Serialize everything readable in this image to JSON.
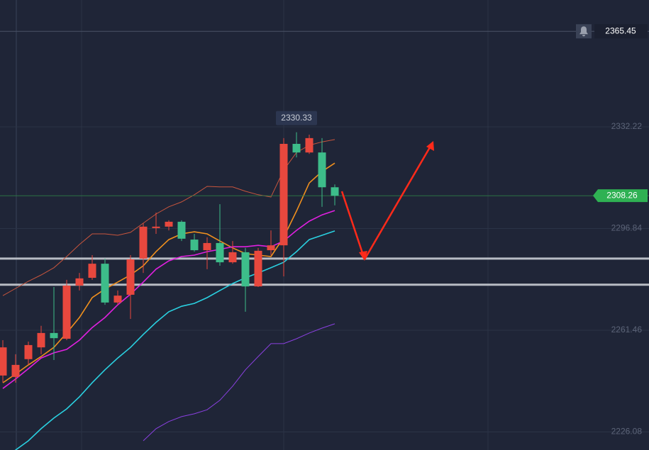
{
  "chart_data": {
    "type": "candlestick",
    "open": [
      2245.7,
      2245.2,
      2251.4,
      2255.5,
      2260.5,
      2258.5,
      2277.0,
      2279.7,
      2284.6,
      2271.1,
      2273.8,
      2286.4,
      2297.0,
      2297.5,
      2299.2,
      2293.0,
      2289.3,
      2291.8,
      2285.1,
      2288.6,
      2276.7,
      2289.3,
      2291.0,
      2326.3,
      2323.3,
      2323.3,
      2311.2
    ],
    "high": [
      2258.0,
      2253.1,
      2257.5,
      2263.0,
      2276.5,
      2279.0,
      2281.4,
      2287.6,
      2286.4,
      2275.3,
      2287.6,
      2298.7,
      2302.4,
      2299.7,
      2299.7,
      2295.0,
      2293.8,
      2305.3,
      2292.5,
      2290.1,
      2290.1,
      2296.2,
      2328.3,
      2330.33,
      2329.5,
      2328.3,
      2312.2
    ],
    "low": [
      2243.2,
      2243.2,
      2249.4,
      2253.1,
      2251.1,
      2258.0,
      2275.3,
      2279.0,
      2270.3,
      2270.3,
      2265.4,
      2281.4,
      2295.0,
      2296.2,
      2292.5,
      2288.8,
      2282.7,
      2283.9,
      2284.6,
      2267.9,
      2276.5,
      2287.6,
      2280.2,
      2321.6,
      2322.8,
      2304.4,
      2304.9
    ],
    "close": [
      2255.5,
      2249.4,
      2256.3,
      2260.5,
      2258.7,
      2277.0,
      2279.5,
      2284.6,
      2271.1,
      2273.5,
      2286.1,
      2297.5,
      2297.5,
      2299.2,
      2293.3,
      2289.3,
      2291.8,
      2285.1,
      2288.6,
      2276.7,
      2289.1,
      2291.0,
      2326.3,
      2323.3,
      2328.3,
      2311.2,
      2308.26
    ],
    "up_color": "#e8483e",
    "down_color": "#3dbd8a",
    "series": [
      {
        "color": "#c8553d",
        "values": [
          2273.5,
          2276.0,
          2278.5,
          2280.7,
          2283.2,
          2287.1,
          2291.3,
          2295.0,
          2295.0,
          2294.5,
          2295.5,
          2298.7,
          2301.9,
          2304.4,
          2306.1,
          2308.6,
          2311.5,
          2311.3,
          2311.3,
          2309.8,
          2308.6,
          2307.8,
          2317.2,
          2323.3,
          2325.8,
          2327.0,
          2327.8
        ]
      },
      {
        "color": "#f0901e",
        "values": [
          2243.2,
          2246.2,
          2249.4,
          2252.3,
          2255.5,
          2260.5,
          2265.9,
          2272.8,
          2275.8,
          2278.2,
          2280.7,
          2283.9,
          2288.8,
          2293.0,
          2295.0,
          2295.7,
          2295.0,
          2292.5,
          2290.1,
          2288.1,
          2287.6,
          2287.1,
          2293.8,
          2302.9,
          2312.7,
          2316.7,
          2319.6
        ]
      },
      {
        "color": "#e020e0",
        "values": [
          2241.2,
          2244.5,
          2248.1,
          2251.8,
          2253.6,
          2254.8,
          2258.0,
          2262.4,
          2265.9,
          2270.3,
          2274.0,
          2278.2,
          2282.7,
          2285.6,
          2287.1,
          2287.6,
          2288.8,
          2289.6,
          2290.5,
          2290.5,
          2291.0,
          2290.5,
          2292.5,
          2296.2,
          2299.4,
          2301.6,
          2303.1
        ]
      },
      {
        "color": "#2ad0e0",
        "values": [
          2216.1,
          2219.8,
          2223.0,
          2227.2,
          2230.9,
          2234.1,
          2238.3,
          2243.2,
          2247.7,
          2251.8,
          2255.5,
          2260.0,
          2264.2,
          2267.9,
          2269.8,
          2270.8,
          2272.8,
          2275.3,
          2277.7,
          2279.7,
          2281.4,
          2283.2,
          2285.1,
          2288.8,
          2293.0,
          2294.5,
          2296.0
        ]
      },
      {
        "color": "#8a40e0",
        "values": [
          null,
          null,
          null,
          null,
          null,
          null,
          null,
          null,
          null,
          null,
          null,
          2223.0,
          2227.2,
          2229.7,
          2231.4,
          2232.4,
          2233.8,
          2237.1,
          2242.0,
          2247.7,
          2252.3,
          2256.8,
          2256.8,
          2258.5,
          2260.5,
          2262.2,
          2263.7
        ]
      }
    ],
    "hlines": [
      2286.4,
      2277.3
    ],
    "alert_price": 2365.45,
    "high_index": 23,
    "ylim": [
      2219.79,
      2376.35
    ],
    "yticks": [
      2332.22,
      2296.84,
      2261.46,
      2226.08
    ],
    "grid": true
  }
}
